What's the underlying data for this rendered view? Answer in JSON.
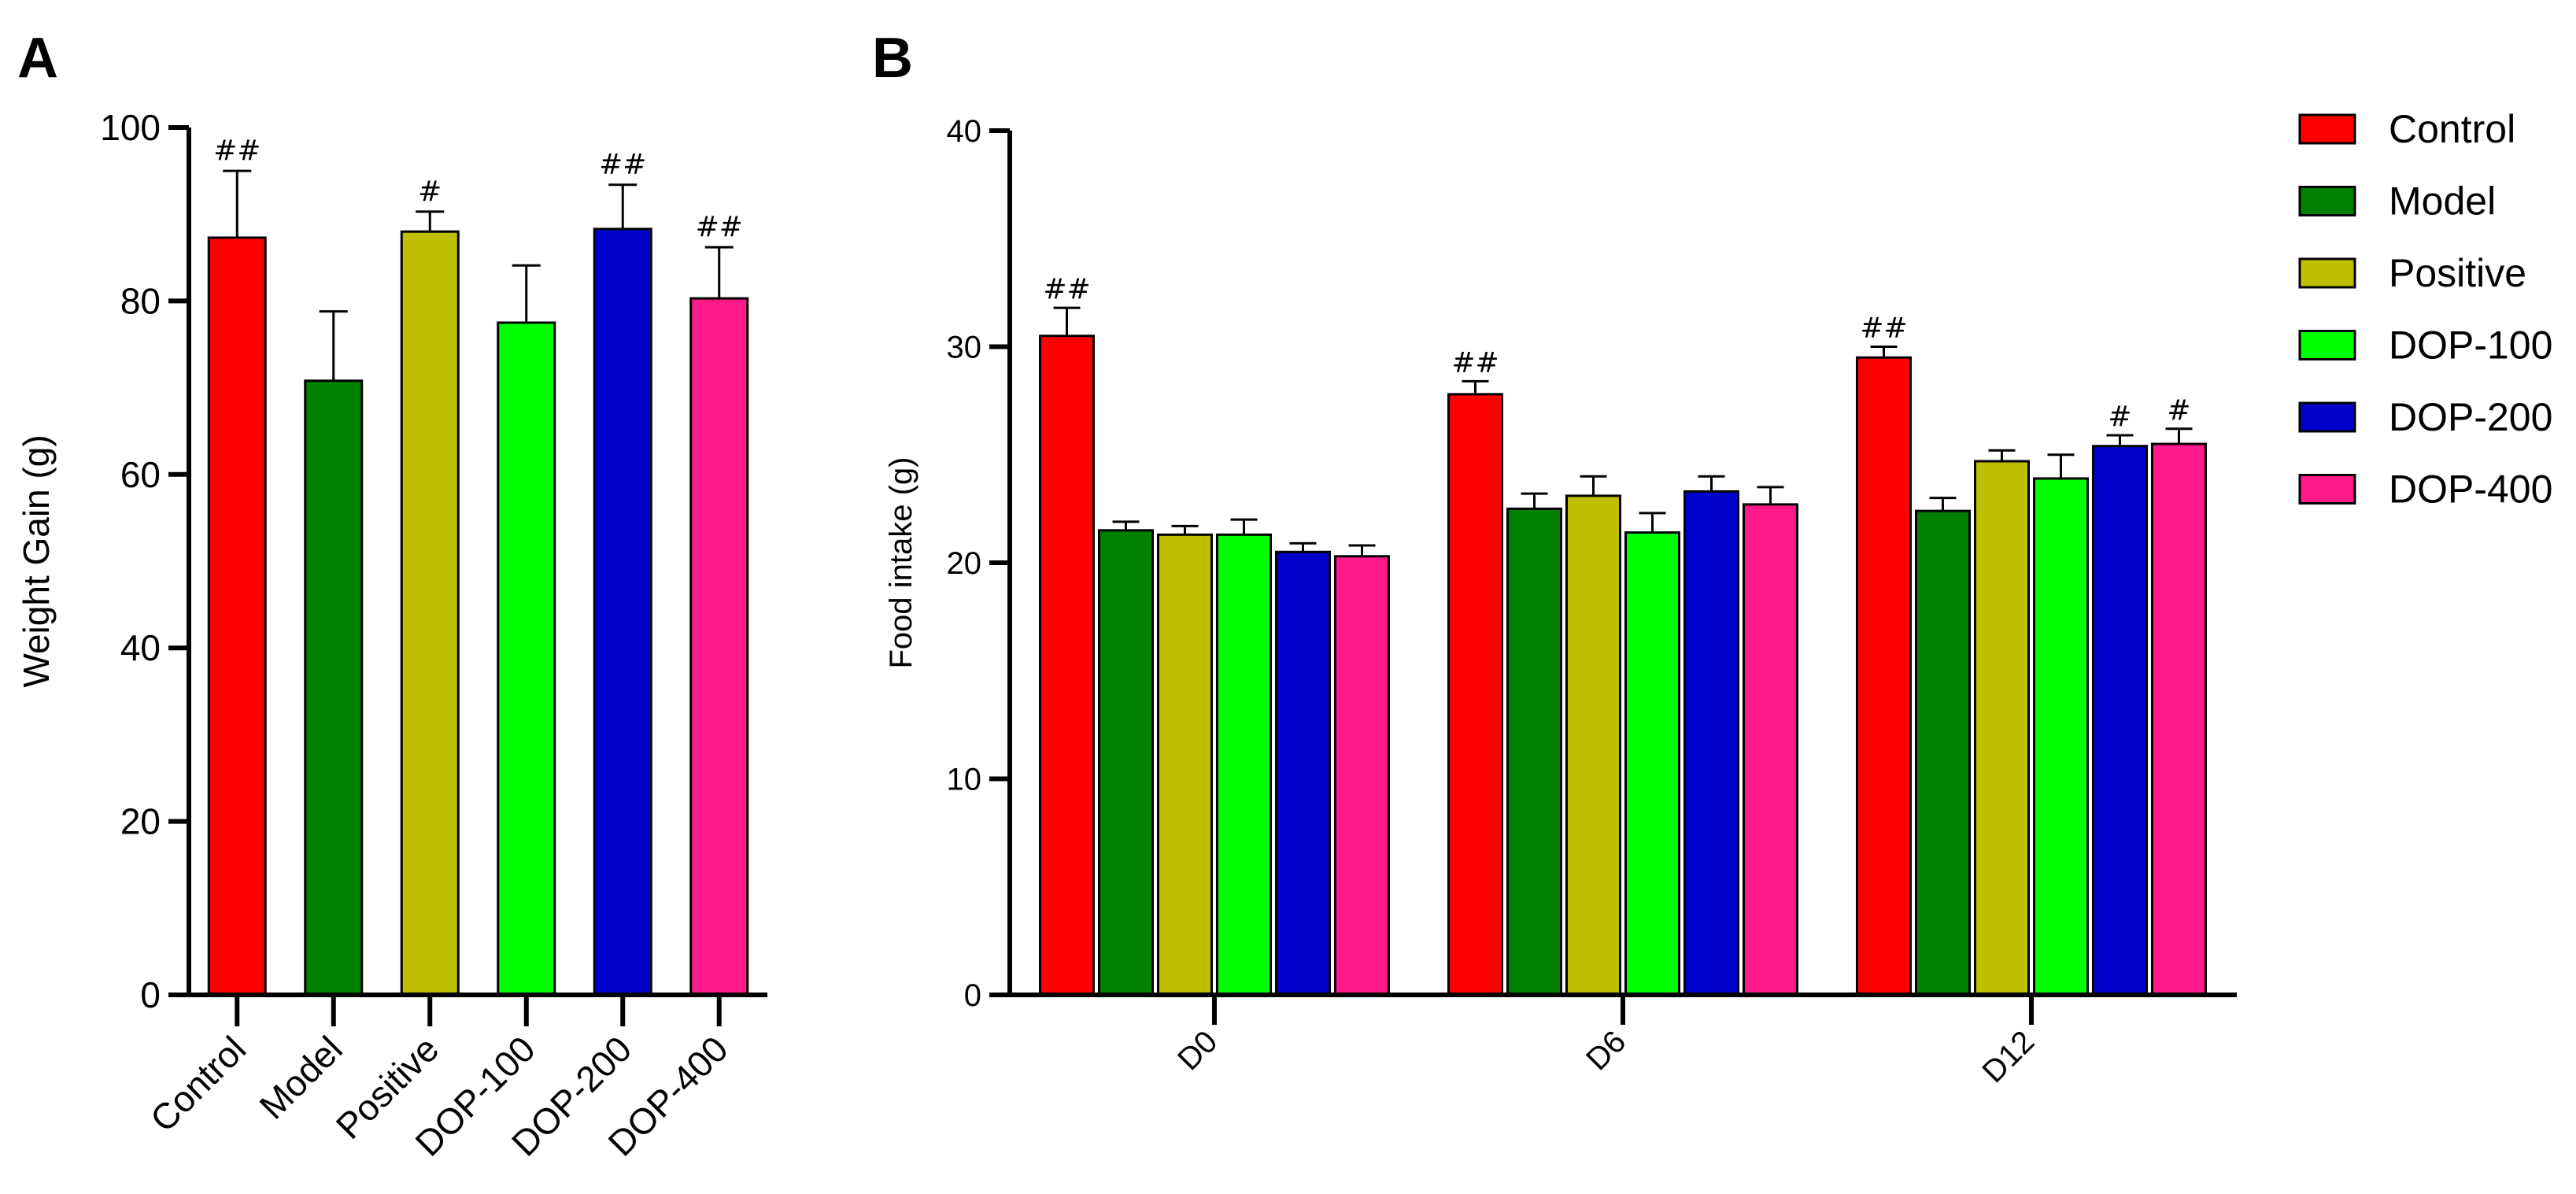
{
  "colors": {
    "Control": "#ff0000",
    "Model": "#008000",
    "Positive": "#bfbf00",
    "DOP-100": "#00ff00",
    "DOP-200": "#0000cc",
    "DOP-400": "#ff1a8c"
  },
  "chart_data": [
    {
      "panel": "A",
      "type": "bar",
      "title": "",
      "xlabel": "",
      "ylabel": "Weight Gain (g)",
      "ylim": [
        0,
        100
      ],
      "yticks": [
        0,
        20,
        40,
        60,
        80,
        100
      ],
      "grid": false,
      "categories": [
        "Control",
        "Model",
        "Positive",
        "DOP-100",
        "DOP-200",
        "DOP-400"
      ],
      "values": [
        87.3,
        70.8,
        88.0,
        77.5,
        88.3,
        80.3
      ],
      "errors": [
        7.7,
        8.0,
        2.3,
        6.6,
        5.1,
        5.9
      ],
      "annotations": [
        "##",
        "",
        "#",
        "",
        "##",
        "##"
      ]
    },
    {
      "panel": "B",
      "type": "bar",
      "title": "",
      "xlabel": "",
      "ylabel": "Food intake (g)",
      "ylim": [
        0,
        40
      ],
      "yticks": [
        0,
        10,
        20,
        30,
        40
      ],
      "grid": false,
      "legend": "right",
      "categories": [
        "D0",
        "D6",
        "D12"
      ],
      "series": [
        {
          "name": "Control",
          "values": [
            30.5,
            27.8,
            29.5
          ],
          "errors": [
            1.3,
            0.6,
            0.5
          ],
          "annotations": [
            "##",
            "##",
            "##"
          ]
        },
        {
          "name": "Model",
          "values": [
            21.5,
            22.5,
            22.4
          ],
          "errors": [
            0.4,
            0.7,
            0.6
          ],
          "annotations": [
            "",
            "",
            ""
          ]
        },
        {
          "name": "Positive",
          "values": [
            21.3,
            23.1,
            24.7
          ],
          "errors": [
            0.4,
            0.9,
            0.5
          ],
          "annotations": [
            "",
            "",
            ""
          ]
        },
        {
          "name": "DOP-100",
          "values": [
            21.3,
            21.4,
            23.9
          ],
          "errors": [
            0.7,
            0.9,
            1.1
          ],
          "annotations": [
            "",
            "",
            ""
          ]
        },
        {
          "name": "DOP-200",
          "values": [
            20.5,
            23.3,
            25.4
          ],
          "errors": [
            0.4,
            0.7,
            0.5
          ],
          "annotations": [
            "",
            "",
            "#"
          ]
        },
        {
          "name": "DOP-400",
          "values": [
            20.3,
            22.7,
            25.5
          ],
          "errors": [
            0.5,
            0.8,
            0.7
          ],
          "annotations": [
            "",
            "",
            "#"
          ]
        }
      ]
    }
  ]
}
